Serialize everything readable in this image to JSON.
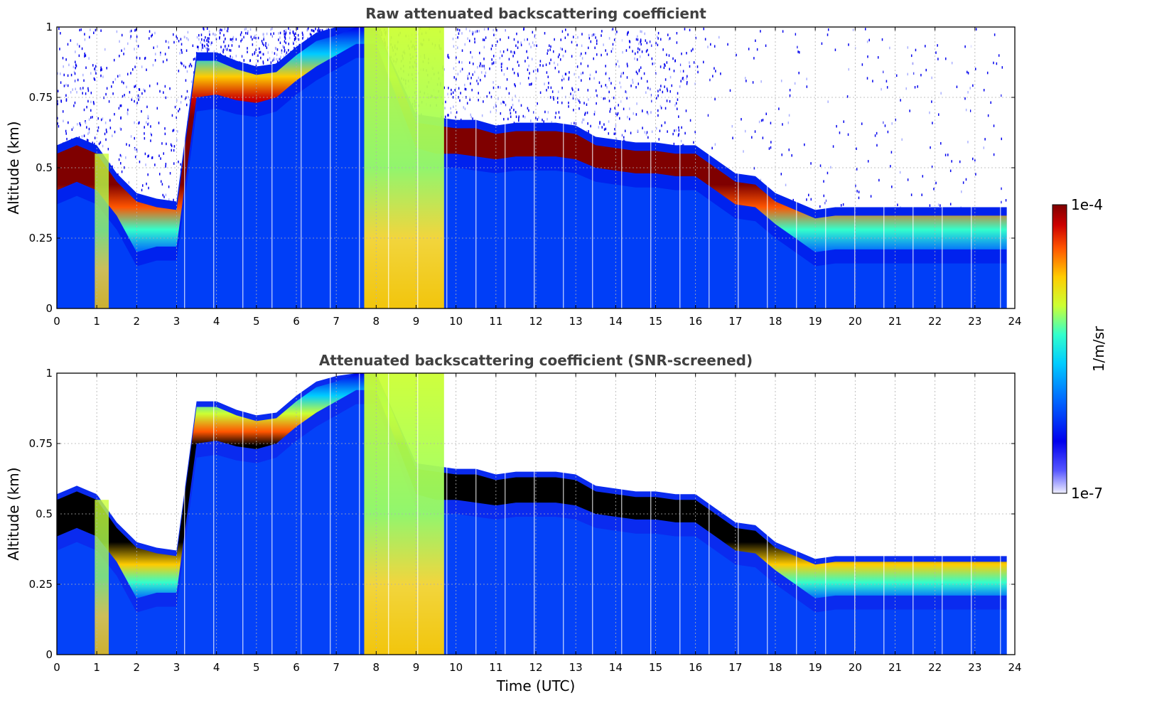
{
  "chart_data": [
    {
      "type": "heatmap",
      "title": "Raw attenuated backscattering coefficient",
      "xlabel": "",
      "ylabel": "Altitude (km)",
      "xlim": [
        0,
        24
      ],
      "ylim": [
        0,
        1
      ],
      "xticks": [
        "0",
        "1",
        "2",
        "3",
        "4",
        "5",
        "6",
        "7",
        "8",
        "9",
        "10",
        "11",
        "12",
        "13",
        "14",
        "15",
        "16",
        "17",
        "18",
        "19",
        "20",
        "21",
        "22",
        "23",
        "24"
      ],
      "yticks": [
        "0",
        "0.25",
        "0.5",
        "0.75",
        "1"
      ],
      "grid": true,
      "layer_top_km": {
        "hours": [
          0,
          0.5,
          1,
          1.5,
          2,
          2.5,
          3,
          3.5,
          4,
          4.5,
          5,
          5.5,
          6,
          6.5,
          7,
          7.5,
          8,
          9,
          9.5,
          10,
          10.5,
          11,
          11.5,
          12,
          12.5,
          13,
          13.5,
          14,
          14.5,
          15,
          15.5,
          16,
          16.5,
          17,
          17.5,
          18,
          18.5,
          19,
          19.5,
          20,
          21,
          22,
          23,
          23.8
        ],
        "values": [
          0.55,
          0.58,
          0.55,
          0.45,
          0.38,
          0.36,
          0.35,
          0.88,
          0.88,
          0.85,
          0.83,
          0.84,
          0.9,
          0.95,
          0.97,
          1.0,
          1.0,
          0.66,
          0.65,
          0.64,
          0.64,
          0.62,
          0.63,
          0.63,
          0.63,
          0.62,
          0.58,
          0.57,
          0.56,
          0.56,
          0.55,
          0.55,
          0.5,
          0.45,
          0.44,
          0.38,
          0.35,
          0.32,
          0.33,
          0.33,
          0.33,
          0.33,
          0.33,
          0.33
        ]
      },
      "layer_base_km": {
        "hours": [
          0,
          0.5,
          1,
          1.5,
          2,
          2.5,
          3,
          3.5,
          4,
          4.5,
          5,
          5.5,
          6,
          6.5,
          7,
          7.5,
          8,
          9,
          9.5,
          10,
          10.5,
          11,
          11.5,
          12,
          12.5,
          13,
          13.5,
          14,
          14.5,
          15,
          15.5,
          16,
          16.5,
          17,
          17.5,
          18,
          18.5,
          19,
          19.5,
          20,
          21,
          22,
          23,
          23.8
        ],
        "values": [
          0.42,
          0.45,
          0.42,
          0.33,
          0.2,
          0.22,
          0.22,
          0.75,
          0.76,
          0.74,
          0.73,
          0.75,
          0.81,
          0.86,
          0.9,
          0.94,
          0.94,
          0.57,
          0.55,
          0.55,
          0.54,
          0.53,
          0.54,
          0.54,
          0.54,
          0.53,
          0.5,
          0.49,
          0.48,
          0.48,
          0.47,
          0.47,
          0.42,
          0.37,
          0.36,
          0.3,
          0.25,
          0.2,
          0.21,
          0.21,
          0.21,
          0.21,
          0.21,
          0.21
        ]
      },
      "rain_intervals_hours": [
        [
          7.7,
          9.7
        ],
        [
          0.95,
          1.3
        ]
      ]
    },
    {
      "type": "heatmap",
      "title": "Attenuated backscattering coefficient (SNR-screened)",
      "xlabel": "Time (UTC)",
      "ylabel": "Altitude (km)",
      "xlim": [
        0,
        24
      ],
      "ylim": [
        0,
        1
      ],
      "xticks": [
        "0",
        "1",
        "2",
        "3",
        "4",
        "5",
        "6",
        "7",
        "8",
        "9",
        "10",
        "11",
        "12",
        "13",
        "14",
        "15",
        "16",
        "17",
        "18",
        "19",
        "20",
        "21",
        "22",
        "23",
        "24"
      ],
      "yticks": [
        "0",
        "0.25",
        "0.5",
        "0.75",
        "1"
      ],
      "grid": true,
      "saturated_color": "#000000",
      "note": "same layer as upper panel; strongest values drawn black"
    }
  ],
  "colorbar": {
    "label": "1/m/sr",
    "max_label": "1e-4",
    "min_label": "1e-7",
    "colors": [
      "#eeeeff",
      "#0000ee",
      "#0066ff",
      "#00ccff",
      "#33ffcc",
      "#ccff33",
      "#ffcc00",
      "#ff5500",
      "#cc0000",
      "#7f0000"
    ]
  }
}
